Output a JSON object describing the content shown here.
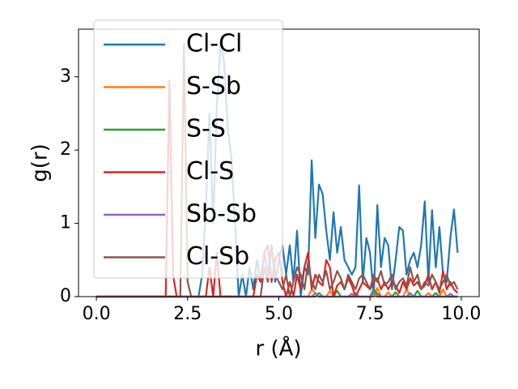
{
  "chart_data": {
    "type": "line",
    "xlabel": "r (Å)",
    "ylabel": "g(r)",
    "xlim": [
      -0.49,
      10.49
    ],
    "ylim": [
      0,
      3.65
    ],
    "xticks": [
      {
        "value": 0,
        "label": "0.0"
      },
      {
        "value": 2.5,
        "label": "2.5"
      },
      {
        "value": 5,
        "label": "5.0"
      },
      {
        "value": 7.5,
        "label": "7.5"
      },
      {
        "value": 10,
        "label": "10.0"
      }
    ],
    "yticks": [
      0,
      1,
      2,
      3
    ],
    "legend": "upper left",
    "x": [
      0.0,
      0.1,
      0.2,
      0.3,
      0.4,
      0.5,
      0.6,
      0.7,
      0.8,
      0.9,
      1.0,
      1.1,
      1.2,
      1.3,
      1.4,
      1.5,
      1.6,
      1.7,
      1.8,
      1.9,
      2.0,
      2.1,
      2.2,
      2.3,
      2.4,
      2.5,
      2.6,
      2.7,
      2.8,
      2.9,
      3.0,
      3.1,
      3.2,
      3.3,
      3.4,
      3.5,
      3.6,
      3.7,
      3.8,
      3.9,
      4.0,
      4.1,
      4.2,
      4.3,
      4.4,
      4.5,
      4.6,
      4.7,
      4.8,
      4.9,
      5.0,
      5.1,
      5.2,
      5.3,
      5.4,
      5.5,
      5.6,
      5.7,
      5.8,
      5.9,
      6.0,
      6.1,
      6.2,
      6.3,
      6.4,
      6.5,
      6.6,
      6.7,
      6.8,
      6.9,
      7.0,
      7.1,
      7.2,
      7.3,
      7.4,
      7.5,
      7.6,
      7.7,
      7.8,
      7.9,
      8.0,
      8.1,
      8.2,
      8.3,
      8.4,
      8.5,
      8.6,
      8.7,
      8.8,
      8.9,
      9.0,
      9.1,
      9.2,
      9.3,
      9.4,
      9.5,
      9.6,
      9.7,
      9.8,
      9.9
    ],
    "series": [
      {
        "name": "Cl-Cl",
        "color": "#1f77b4",
        "values": [
          0,
          0,
          0,
          0,
          0,
          0,
          0,
          0,
          0,
          0,
          0,
          0,
          0,
          0,
          0,
          0,
          0,
          0,
          0,
          0,
          0,
          0,
          0,
          0,
          0,
          0,
          0,
          0,
          0,
          0.3,
          1.2,
          2.5,
          1.0,
          2.6,
          3.45,
          3.2,
          2.3,
          1.9,
          1.0,
          0,
          0.3,
          0,
          0.4,
          0.1,
          0.5,
          0.2,
          0.6,
          0.3,
          0.7,
          0.2,
          0.5,
          0.7,
          0.3,
          0.7,
          0.2,
          0.9,
          0,
          0.4,
          0.3,
          1.86,
          0.8,
          1.53,
          1.4,
          0.9,
          0.5,
          1.15,
          0.6,
          0.95,
          0.5,
          0.4,
          0.3,
          0.4,
          1.52,
          0.2,
          0.8,
          0.6,
          0,
          1.25,
          0.4,
          0.8,
          0.7,
          0.1,
          0.5,
          0.95,
          0.9,
          0.3,
          0.5,
          0.6,
          0.4,
          0.7,
          1.3,
          0.2,
          1.18,
          0.4,
          0.95,
          0.3,
          0.2,
          0.8,
          1.19,
          0.6
        ]
      },
      {
        "name": "S-Sb",
        "color": "#ff7f0e",
        "values": [
          0,
          0,
          0,
          0,
          0,
          0,
          0,
          0,
          0,
          0,
          0,
          0,
          0,
          0,
          0,
          0,
          0,
          0,
          0,
          0,
          0,
          0,
          0,
          0,
          0,
          0,
          0,
          0,
          0,
          0,
          0,
          0,
          0,
          0,
          0,
          0,
          0,
          0,
          0,
          0,
          0,
          0,
          0,
          0,
          0,
          0,
          0,
          0,
          0,
          0,
          0,
          0,
          0,
          0,
          0,
          0,
          0,
          0,
          0,
          0.1,
          0.05,
          0,
          0,
          0,
          0.08,
          0,
          0,
          0,
          0,
          0,
          0,
          0.05,
          0,
          0,
          0,
          0,
          0,
          0.12,
          0,
          0,
          0.06,
          0,
          0,
          0,
          0,
          0.1,
          0,
          0,
          0,
          0,
          0,
          0.05,
          0,
          0,
          0,
          0.1,
          0,
          0,
          0,
          0
        ]
      },
      {
        "name": "S-S",
        "color": "#2ca02c",
        "values": [
          0,
          0,
          0,
          0,
          0,
          0,
          0,
          0,
          0,
          0,
          0,
          0,
          0,
          0,
          0,
          0,
          0,
          0,
          0,
          0,
          0,
          0,
          0,
          0,
          0,
          0,
          0,
          0,
          0,
          0,
          0,
          0,
          0,
          0,
          0,
          0,
          0,
          0,
          0,
          0,
          0,
          0,
          0,
          0,
          0,
          0,
          0,
          0,
          0,
          0,
          0,
          0,
          0,
          0,
          0,
          0,
          0,
          0,
          0,
          0,
          0,
          0.05,
          0,
          0,
          0,
          0,
          0.08,
          0,
          0,
          0,
          0,
          0,
          0,
          0,
          0,
          0,
          0.1,
          0.04,
          0,
          0,
          0,
          0,
          0.06,
          0,
          0,
          0,
          0,
          0,
          0.08,
          0,
          0,
          0,
          0,
          0.05,
          0,
          0,
          0,
          0,
          0,
          0
        ]
      },
      {
        "name": "Cl-S",
        "color": "#d62728",
        "values": [
          0,
          0,
          0,
          0,
          0,
          0,
          0,
          0,
          0,
          0,
          0,
          0,
          0,
          0,
          0,
          0,
          0,
          0,
          0,
          0,
          2.95,
          0.3,
          0,
          0,
          0,
          0,
          0,
          0,
          0,
          0,
          0,
          0.4,
          0,
          0.6,
          0,
          0,
          0,
          0,
          0,
          0,
          0,
          0,
          0,
          0,
          0.3,
          0.2,
          0.6,
          0.7,
          0.2,
          0.5,
          0.6,
          0.2,
          0,
          0.2,
          0,
          0.3,
          0.1,
          0.4,
          0.6,
          0.1,
          0.3,
          0.2,
          0.15,
          0.5,
          0.4,
          0,
          0.15,
          0.2,
          0.1,
          0.25,
          0.15,
          0,
          0.1,
          0.2,
          0.15,
          0.1,
          0.2,
          0.25,
          0.1,
          0.2,
          0.1,
          0.2,
          0.15,
          0.05,
          0.2,
          0.1,
          0.25,
          0.15,
          0.2,
          0.1,
          0.15,
          0.3,
          0.1,
          0.2,
          0.05,
          0.35,
          0.1,
          0.2,
          0.1,
          0.05
        ]
      },
      {
        "name": "Sb-Sb",
        "color": "#9467bd",
        "values": [
          0,
          0,
          0,
          0,
          0,
          0,
          0,
          0,
          0,
          0,
          0,
          0,
          0,
          0,
          0,
          0,
          0,
          0,
          0,
          0,
          0,
          0,
          0,
          0,
          0,
          0,
          0,
          0,
          0,
          0,
          0,
          0,
          0,
          0,
          0,
          0,
          0,
          0,
          0,
          0,
          0,
          0,
          0,
          0,
          0,
          0,
          0,
          0,
          0,
          0,
          0,
          0,
          0,
          0,
          0,
          0,
          0,
          0,
          0,
          0,
          0.05,
          0,
          0,
          0,
          0,
          0,
          0,
          0,
          0,
          0,
          0.04,
          0,
          0,
          0,
          0,
          0,
          0.06,
          0,
          0,
          0,
          0,
          0,
          0,
          0,
          0,
          0,
          0.05,
          0,
          0,
          0,
          0,
          0,
          0,
          0,
          0,
          0,
          0,
          0.04,
          0,
          0
        ]
      },
      {
        "name": "Cl-Sb",
        "color": "#8c564b",
        "values": [
          0,
          0,
          0,
          0,
          0,
          0,
          0,
          0,
          0,
          0,
          0,
          0,
          0,
          0,
          0,
          0,
          0,
          0,
          0,
          0,
          0,
          0,
          0,
          0,
          3.45,
          0.2,
          0,
          0,
          0,
          0,
          0,
          0,
          0,
          0,
          0,
          0,
          0,
          0,
          0,
          0,
          0,
          0,
          0,
          0,
          0,
          0,
          0.4,
          0.2,
          0.7,
          0.3,
          0.2,
          0.1,
          0.3,
          0,
          0.2,
          0.4,
          0.3,
          0.1,
          0.47,
          0.2,
          0.1,
          0.3,
          0.2,
          0.35,
          0.1,
          0.2,
          0.35,
          0.25,
          0.1,
          0.3,
          0.2,
          0.1,
          0.25,
          0.3,
          0.2,
          0.1,
          0.3,
          0.2,
          0.35,
          0.15,
          0.2,
          0.3,
          0.1,
          0.2,
          0.25,
          0.15,
          0.4,
          0.2,
          0.3,
          0.1,
          0.2,
          0.15,
          0.3,
          0.2,
          0.1,
          0.2,
          0.3,
          0.15,
          0.2,
          0.1
        ]
      }
    ]
  }
}
